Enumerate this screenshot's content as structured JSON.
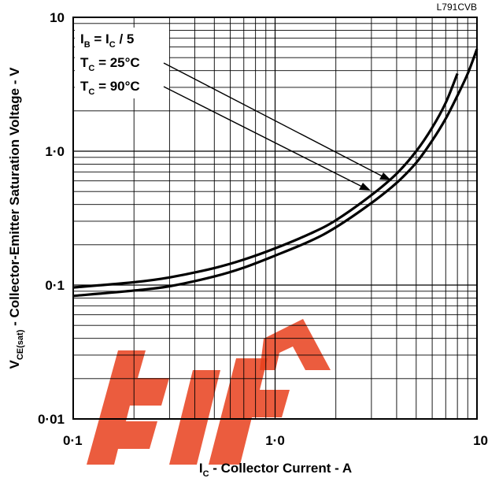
{
  "figure_code": "L791CVB",
  "chart_data": {
    "type": "line",
    "x_scale": "log",
    "y_scale": "log",
    "xlim": [
      0.1,
      10
    ],
    "ylim": [
      0.01,
      10
    ],
    "x_ticks": [
      "0·1",
      "1·0",
      "10"
    ],
    "y_ticks": [
      "10",
      "1·0",
      "0·1",
      "0·01"
    ],
    "grid": true,
    "xlabel": {
      "main": "I",
      "sub": "C",
      "rest": " - Collector Current - A"
    },
    "ylabel": {
      "main": "V",
      "sub": "CE(sat)",
      "rest": " - Collector-Emitter Saturation Voltage - V"
    },
    "legend": {
      "position": "top-left",
      "conditions": [
        {
          "main": "I",
          "sub": "B",
          "rest": " = I",
          "sub2": "C",
          "rest2": " / 5"
        },
        {
          "main": "T",
          "sub": "C",
          "rest": " = 25°C"
        },
        {
          "main": "T",
          "sub": "C",
          "rest": " = 90°C"
        }
      ]
    },
    "series": [
      {
        "name": "T_C = 25°C",
        "x": [
          0.1,
          0.2,
          0.3,
          0.5,
          0.7,
          1.0,
          1.5,
          2.0,
          3.0,
          4.0,
          5.0,
          6.0,
          7.0,
          8.0
        ],
        "y": [
          0.096,
          0.105,
          0.114,
          0.134,
          0.155,
          0.188,
          0.243,
          0.305,
          0.47,
          0.68,
          1.0,
          1.5,
          2.3,
          3.8
        ]
      },
      {
        "name": "T_C = 90°C",
        "x": [
          0.1,
          0.2,
          0.3,
          0.5,
          0.7,
          1.0,
          1.5,
          2.0,
          3.0,
          4.0,
          5.0,
          6.0,
          7.0,
          8.0,
          9.0,
          10.0
        ],
        "y": [
          0.083,
          0.091,
          0.098,
          0.116,
          0.135,
          0.166,
          0.214,
          0.27,
          0.41,
          0.58,
          0.82,
          1.2,
          1.75,
          2.6,
          3.8,
          5.8
        ]
      }
    ]
  }
}
